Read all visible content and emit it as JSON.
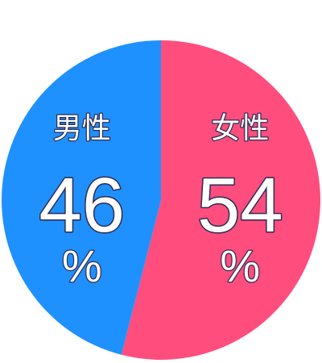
{
  "chart_data": {
    "type": "pie",
    "unit": "%",
    "slices": [
      {
        "label": "女性",
        "value": 54,
        "color": "#ff4d7d"
      },
      {
        "label": "男性",
        "value": 46,
        "color": "#1f91ff"
      }
    ]
  }
}
